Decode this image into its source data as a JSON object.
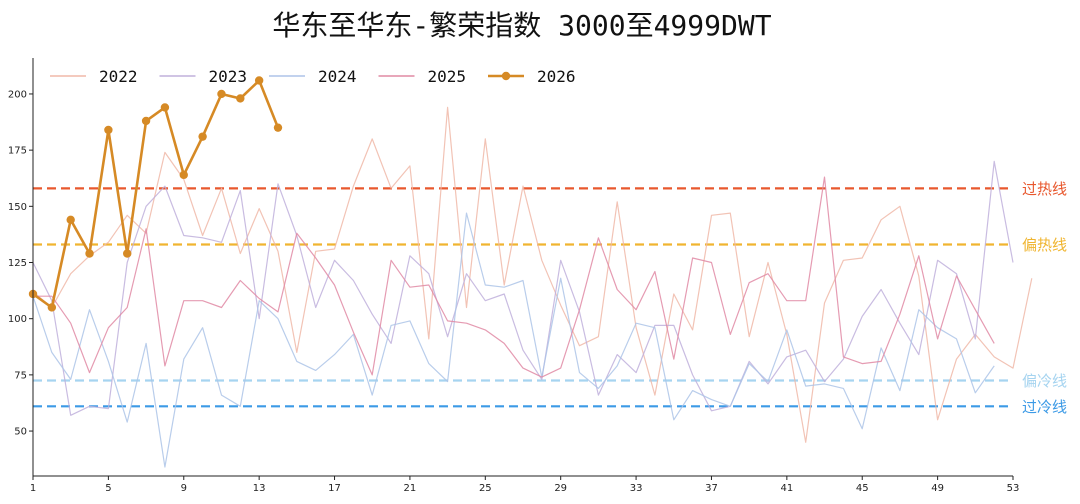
{
  "chart_data": {
    "type": "line",
    "title": "华东至华东-繁荣指数 3000至4999DWT",
    "xlabel": "",
    "ylabel": "",
    "xlim": [
      1,
      53
    ],
    "ylim": [
      30,
      216
    ],
    "x_ticks": [
      1,
      5,
      9,
      13,
      17,
      21,
      25,
      29,
      33,
      37,
      41,
      45,
      49,
      53
    ],
    "y_ticks": [
      50,
      75,
      100,
      125,
      150,
      175,
      200
    ],
    "grid": false,
    "legend_position": "top-left",
    "series": [
      {
        "name": "2022",
        "color": "#f0b8a8",
        "highlight": false,
        "values": [
          112,
          105,
          120,
          128,
          134,
          146,
          138,
          174,
          162,
          137,
          158,
          129,
          149,
          130,
          85,
          130,
          131,
          159,
          180,
          158,
          168,
          91,
          194,
          105,
          180,
          115,
          159,
          126,
          106,
          88,
          92,
          152,
          96,
          66,
          111,
          95,
          146,
          147,
          92,
          125,
          93,
          45,
          107,
          126,
          127,
          144,
          150,
          119,
          55,
          82,
          93,
          83,
          78,
          118
        ]
      },
      {
        "name": "2023",
        "color": "#c0b0dc",
        "highlight": false,
        "values": [
          125,
          108,
          57,
          61,
          60,
          125,
          150,
          159,
          137,
          136,
          134,
          157,
          100,
          160,
          137,
          105,
          126,
          117,
          102,
          89,
          128,
          120,
          92,
          120,
          108,
          111,
          86,
          73,
          126,
          103,
          66,
          84,
          76,
          97,
          97,
          75,
          59,
          61,
          81,
          71,
          83,
          86,
          72,
          82,
          101,
          113,
          98,
          84,
          126,
          120,
          91,
          170,
          125
        ]
      },
      {
        "name": "2024",
        "color": "#adc4e8",
        "highlight": false,
        "values": [
          110,
          85,
          73,
          104,
          81,
          54,
          89,
          34,
          82,
          96,
          66,
          61,
          108,
          100,
          81,
          77,
          84,
          93,
          66,
          97,
          99,
          80,
          72,
          147,
          115,
          114,
          117,
          74,
          118,
          76,
          69,
          79,
          98,
          96,
          55,
          68,
          64,
          61,
          80,
          72,
          95,
          70,
          71,
          69,
          51,
          87,
          68,
          104,
          96,
          91,
          67,
          79
        ]
      },
      {
        "name": "2025",
        "color": "#e08aa4",
        "highlight": false,
        "values": [
          110,
          110,
          98,
          76,
          96,
          105,
          140,
          79,
          108,
          108,
          105,
          117,
          109,
          103,
          138,
          127,
          115,
          94,
          75,
          126,
          114,
          115,
          99,
          98,
          95,
          89,
          78,
          74,
          78,
          104,
          136,
          113,
          104,
          121,
          82,
          127,
          125,
          93,
          116,
          120,
          108,
          108,
          163,
          83,
          80,
          81,
          102,
          128,
          91,
          119,
          104,
          89
        ]
      },
      {
        "name": "2026",
        "color": "#d68a25",
        "highlight": true,
        "values": [
          111,
          105,
          144,
          129,
          184,
          129,
          188,
          194,
          164,
          181,
          200,
          198,
          206,
          185
        ]
      }
    ],
    "reference_lines": [
      {
        "label": "过热线",
        "value": 158,
        "color": "#e8582e"
      },
      {
        "label": "偏热线",
        "value": 133,
        "color": "#f0b530"
      },
      {
        "label": "偏冷线",
        "value": 72.5,
        "color": "#a6d4f0"
      },
      {
        "label": "过冷线",
        "value": 61,
        "color": "#3c9ae6"
      }
    ]
  }
}
